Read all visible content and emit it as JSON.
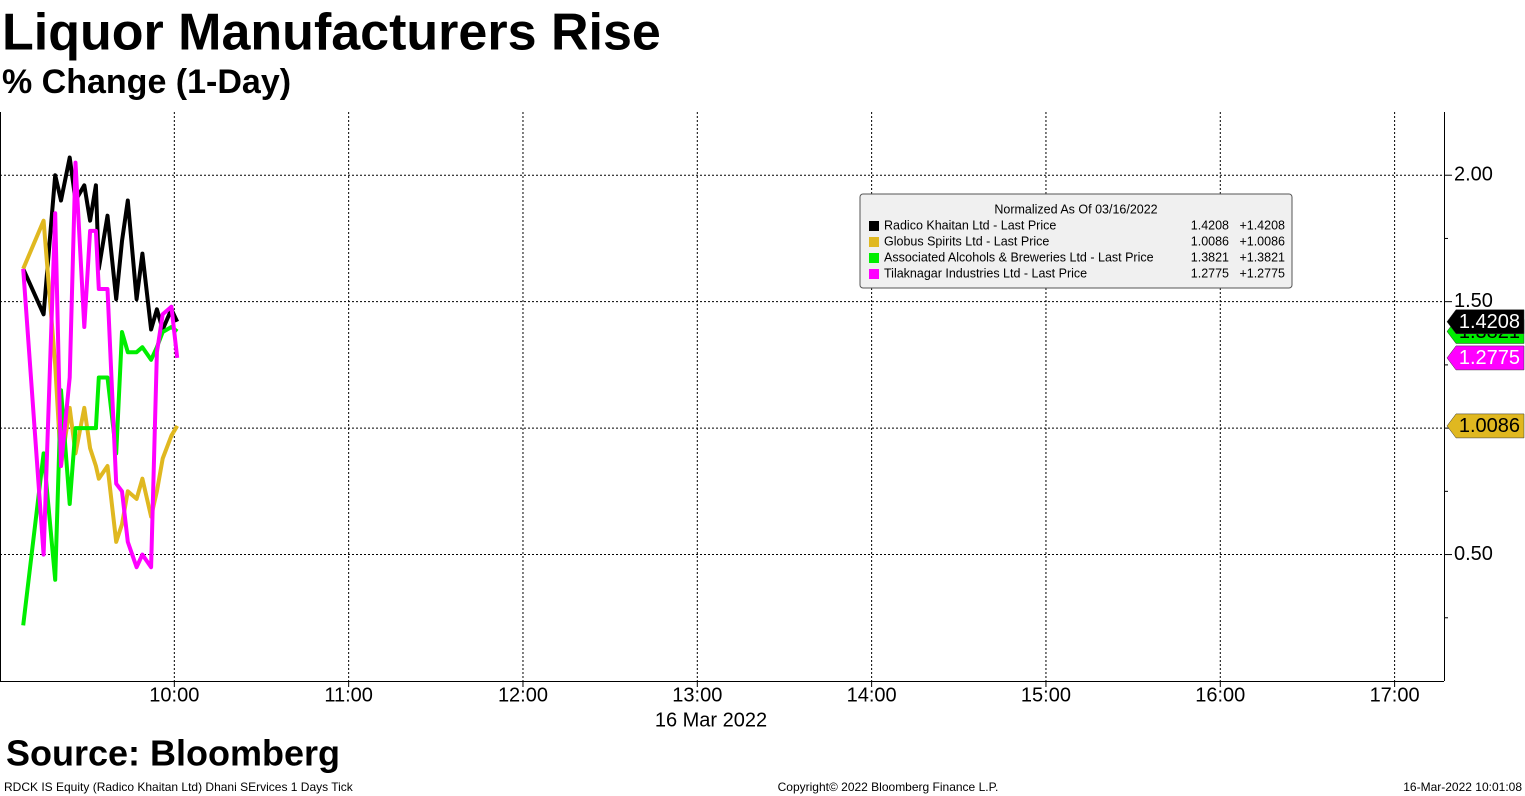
{
  "chart_data": {
    "type": "line",
    "title": "Liquor Manufacturers Rise",
    "subtitle": "% Change (1-Day)",
    "source": "Source: Bloomberg",
    "footer_left": "RDCK IS Equity (Radico Khaitan Ltd) Dhani SErvices 1 Days  Tick",
    "footer_center": "Copyright© 2022 Bloomberg Finance L.P.",
    "footer_right": "16-Mar-2022 10:01:08",
    "x_label": "16 Mar 2022",
    "legend_title": "Normalized As Of 03/16/2022",
    "x": [
      "09:08",
      "09:15",
      "09:19",
      "09:21",
      "09:24",
      "09:26",
      "09:29",
      "09:31",
      "09:33",
      "09:34",
      "09:37",
      "09:40",
      "09:42",
      "09:44",
      "09:47",
      "09:49",
      "09:52",
      "09:54",
      "09:56",
      "09:59",
      "10:01"
    ],
    "xlim": [
      "09:00",
      "17:17"
    ],
    "xticks": [
      "10:00",
      "11:00",
      "12:00",
      "13:00",
      "14:00",
      "15:00",
      "16:00",
      "17:00"
    ],
    "ylim": [
      0.0,
      2.25
    ],
    "yticks": [
      {
        "value": 0.5,
        "label": "0.50"
      },
      {
        "value": 1,
        "label": "1.00"
      },
      {
        "value": 1.5,
        "label": "1.50"
      },
      {
        "value": 2,
        "label": "2.00"
      }
    ],
    "yminorticks": [
      0.25,
      0.75,
      1.25,
      1.75
    ],
    "grid": true,
    "series": [
      {
        "name": "Radico Khaitan Ltd - Last Price",
        "color": "#000000",
        "text_color": "#ffffff",
        "last": 1.4208,
        "change": {
          "value": 1.4208,
          "label": "+1.4208"
        },
        "values": [
          1.63,
          1.45,
          2.0,
          1.9,
          2.07,
          1.9,
          1.96,
          1.82,
          1.96,
          1.63,
          1.84,
          1.51,
          1.74,
          1.9,
          1.51,
          1.69,
          1.39,
          1.47,
          1.39,
          1.47,
          1.4208
        ]
      },
      {
        "name": "Globus Spirits Ltd - Last Price",
        "color": "#e0b820",
        "text_color": "#000000",
        "last": 1.0086,
        "change": {
          "value": 1.0086,
          "label": "+1.0086"
        },
        "values": [
          1.63,
          1.82,
          1.25,
          0.85,
          1.08,
          0.9,
          1.08,
          0.92,
          0.85,
          0.8,
          0.85,
          0.55,
          0.62,
          0.75,
          0.72,
          0.8,
          0.65,
          0.75,
          0.88,
          0.97,
          1.0086
        ]
      },
      {
        "name": "Associated Alcohols & Breweries Ltd - Last Price",
        "color": "#00ee00",
        "text_color": "#000000",
        "last": 1.3821,
        "change": {
          "value": 1.3821,
          "label": "+1.3821"
        },
        "values": [
          0.22,
          0.9,
          0.4,
          1.15,
          0.7,
          1.0,
          1.0,
          1.0,
          1.0,
          1.2,
          1.2,
          0.9,
          1.38,
          1.3,
          1.3,
          1.32,
          1.27,
          1.32,
          1.38,
          1.4,
          1.3821
        ]
      },
      {
        "name": "Tilaknagar Industries Ltd - Last Price",
        "color": "#ff00ff",
        "text_color": "#ffffff",
        "last": 1.2775,
        "change": {
          "value": 1.2775,
          "label": "+1.2775"
        },
        "values": [
          1.63,
          0.5,
          1.85,
          0.85,
          1.2,
          2.05,
          1.4,
          1.78,
          1.78,
          1.55,
          1.55,
          0.78,
          0.75,
          0.55,
          0.45,
          0.5,
          0.45,
          1.3,
          1.45,
          1.48,
          1.2775
        ]
      }
    ]
  }
}
